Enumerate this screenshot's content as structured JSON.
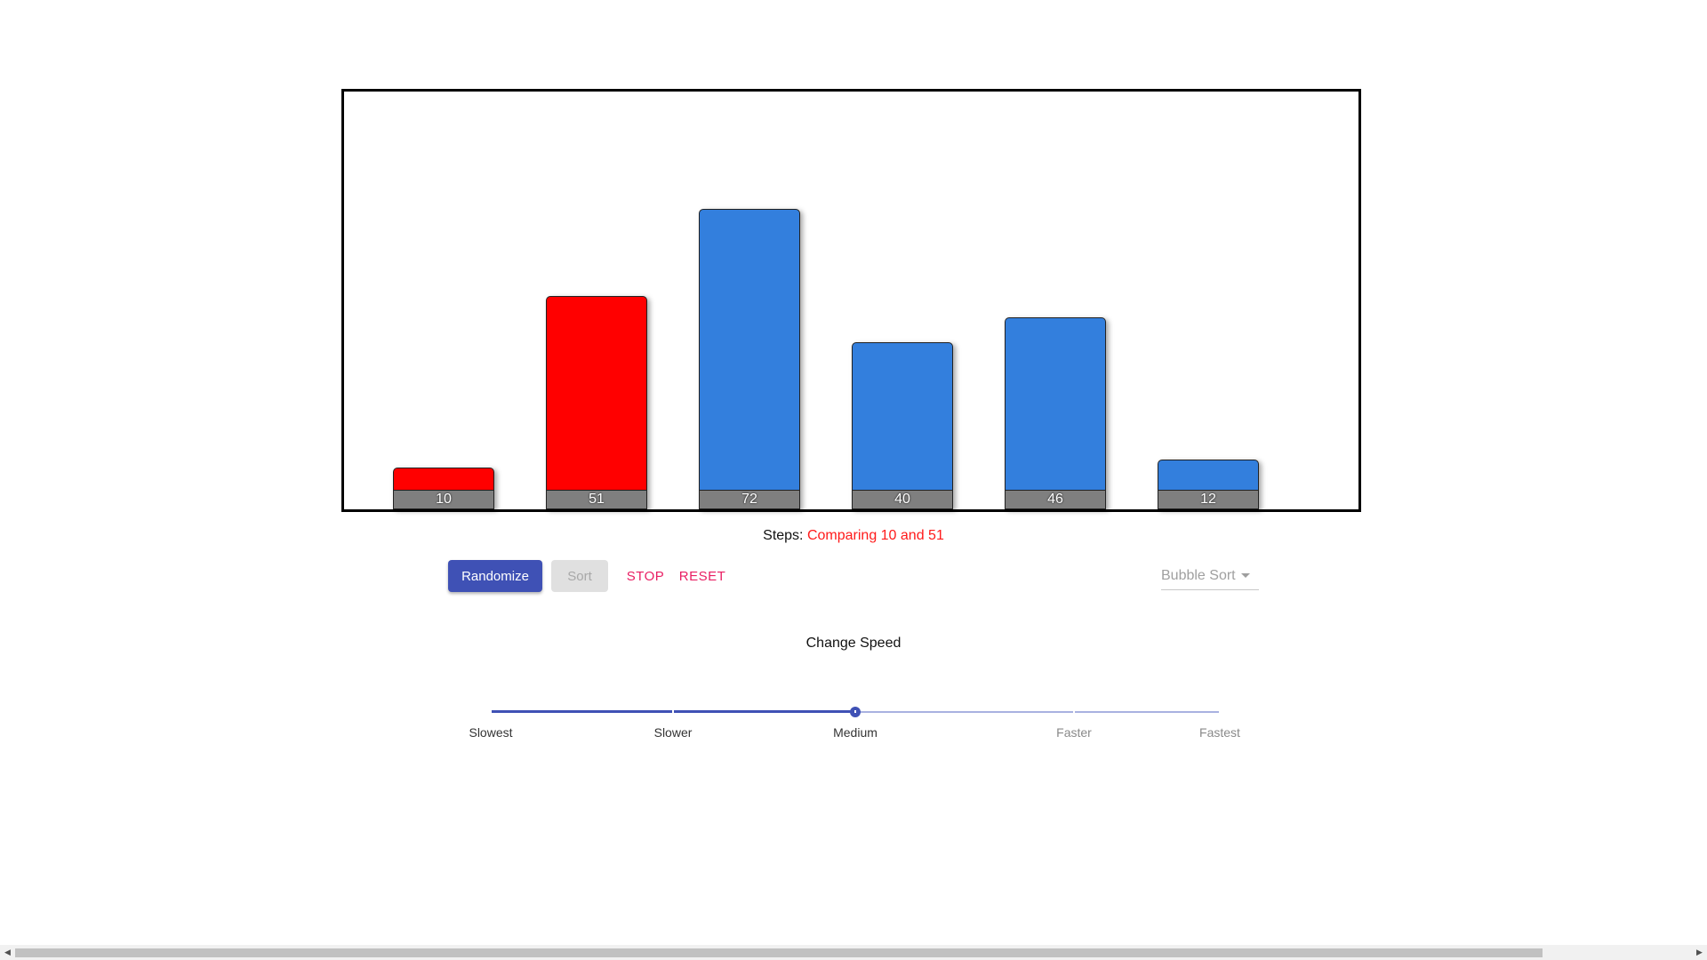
{
  "chart_data": {
    "type": "bar",
    "values": [
      10,
      51,
      72,
      40,
      46,
      12
    ],
    "bar_colors": [
      "#ff0000",
      "#ff0000",
      "#337fdd",
      "#337fdd",
      "#337fdd",
      "#337fdd"
    ],
    "ylim": [
      0,
      100
    ],
    "grid": false
  },
  "colors": {
    "comparing": "#ff0000",
    "default_bar": "#337fdd",
    "primary": "#3f51b5",
    "secondary": "#e91e63",
    "value_label_bg": "#7f7f7f"
  },
  "steps": {
    "label": "Steps:",
    "text": "Comparing 10 and 51"
  },
  "controls": {
    "randomize_label": "Randomize",
    "sort_label": "Sort",
    "sort_disabled": true,
    "stop_label": "STOP",
    "reset_label": "RESET",
    "algorithm_selected": "Bubble Sort"
  },
  "speed": {
    "title": "Change Speed",
    "marks": [
      {
        "label": "Slowest",
        "value": 0
      },
      {
        "label": "Slower",
        "value": 25
      },
      {
        "label": "Medium",
        "value": 50
      },
      {
        "label": "Faster",
        "value": 80
      },
      {
        "label": "Fastest",
        "value": 100
      }
    ],
    "value": 50,
    "min": 0,
    "max": 100
  },
  "icons": {
    "dropdown": "caret-down-icon",
    "scroll_left": "arrow-left-icon",
    "scroll_right": "arrow-right-icon"
  }
}
